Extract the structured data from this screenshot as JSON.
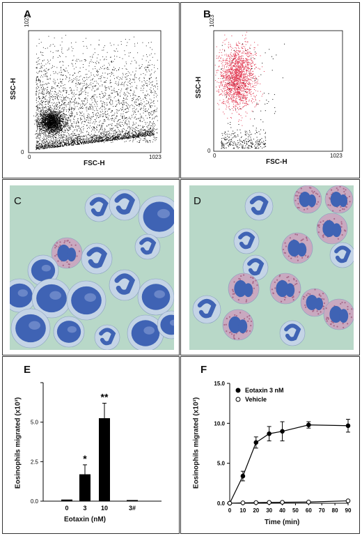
{
  "panels": {
    "A": {
      "label": "A"
    },
    "B": {
      "label": "B"
    },
    "C": {
      "label": "C"
    },
    "D": {
      "label": "D"
    },
    "E": {
      "label": "E"
    },
    "F": {
      "label": "F"
    }
  },
  "colors": {
    "cell_bg": "#b8d8c8",
    "nucleus": "#3f63b4",
    "granule": "#a86a8a",
    "red_dots": "#e0304a"
  },
  "chart_data": [
    {
      "type": "scatter",
      "panel": "A",
      "xlabel": "FSC-H",
      "ylabel": "SSC-H",
      "xlim": [
        0,
        1023
      ],
      "ylim": [
        0,
        1023
      ],
      "xticks": [
        "0",
        "1023"
      ],
      "yticks": [
        "0",
        "1023"
      ],
      "point_color": "#000000"
    },
    {
      "type": "scatter",
      "panel": "B",
      "xlabel": "FSC-H",
      "ylabel": "SSC-H",
      "xlim": [
        0,
        1023
      ],
      "ylim": [
        0,
        1023
      ],
      "xticks": [
        "0",
        "1023"
      ],
      "yticks": [
        "0",
        "1023"
      ],
      "point_colors": [
        "#e0304a",
        "#000000"
      ]
    },
    {
      "type": "bar",
      "panel": "E",
      "xlabel": "Eotaxin (nM)",
      "ylabel": "Eosinophils migrated (x10³)",
      "categories": [
        "0",
        "3",
        "10",
        "3#"
      ],
      "values": [
        0.1,
        1.7,
        5.25,
        0.07
      ],
      "errors": [
        0.02,
        0.6,
        0.95,
        0.02
      ],
      "annotations": [
        "",
        "*",
        "**",
        ""
      ],
      "ylim": [
        0,
        7.5
      ],
      "yticks": [
        "0.0",
        "2.5",
        "5.0"
      ]
    },
    {
      "type": "line",
      "panel": "F",
      "xlabel": "Time (min)",
      "ylabel": "Eosinophils migrated (x10³)",
      "xlim": [
        0,
        90
      ],
      "ylim": [
        0,
        15
      ],
      "xticks": [
        "0",
        "10",
        "20",
        "30",
        "40",
        "50",
        "60",
        "70",
        "80",
        "90"
      ],
      "yticks": [
        "0.0",
        "5.0",
        "10.0",
        "15.0"
      ],
      "series": [
        {
          "name": "Eotaxin 3 nM",
          "marker": "filled",
          "x": [
            0,
            10,
            20,
            30,
            40,
            60,
            90
          ],
          "y": [
            0,
            3.4,
            7.6,
            8.7,
            9.0,
            9.8,
            9.7
          ],
          "err": [
            0,
            0.6,
            0.7,
            0.9,
            1.2,
            0.4,
            0.8
          ]
        },
        {
          "name": "Vehicle",
          "marker": "open",
          "x": [
            0,
            10,
            20,
            30,
            40,
            60,
            90
          ],
          "y": [
            0,
            0.05,
            0.08,
            0.1,
            0.12,
            0.15,
            0.3
          ],
          "err": [
            0,
            0,
            0,
            0,
            0,
            0,
            0
          ]
        }
      ]
    }
  ]
}
